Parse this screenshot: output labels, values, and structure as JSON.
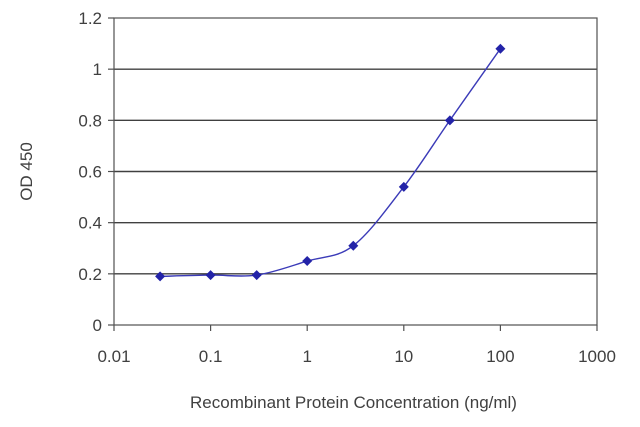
{
  "chart_data": {
    "type": "line",
    "xlabel": "Recombinant Protein Concentration (ng/ml)",
    "ylabel": "OD 450",
    "x_scale": "log",
    "xlim": [
      0.01,
      1000
    ],
    "ylim": [
      0,
      1.2
    ],
    "x_ticks": [
      "0.01",
      "0.1",
      "1",
      "10",
      "100",
      "1000"
    ],
    "y_ticks": [
      "0",
      "0.2",
      "0.4",
      "0.6",
      "0.8",
      "1",
      "1.2"
    ],
    "grid": "horizontal",
    "series": [
      {
        "color": "#2323a8",
        "marker": "diamond",
        "x": [
          0.03,
          0.1,
          0.3,
          1,
          3,
          10,
          30,
          100
        ],
        "y": [
          0.19,
          0.195,
          0.195,
          0.25,
          0.31,
          0.54,
          0.8,
          1.08
        ]
      }
    ]
  }
}
